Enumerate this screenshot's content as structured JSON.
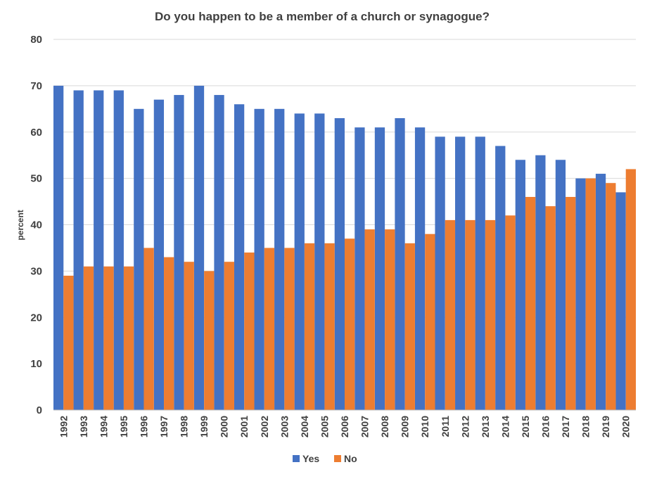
{
  "chart_data": {
    "type": "bar",
    "title": "Do you happen to be a member of a church or synagogue?",
    "ylabel": "percent",
    "xlabel": "",
    "ylim": [
      0,
      80
    ],
    "yticks": [
      0,
      10,
      20,
      30,
      40,
      50,
      60,
      70,
      80
    ],
    "grid": true,
    "legend_position": "bottom",
    "categories": [
      "1992",
      "1993",
      "1994",
      "1995",
      "1996",
      "1997",
      "1998",
      "1999",
      "2000",
      "2001",
      "2002",
      "2003",
      "2004",
      "2005",
      "2006",
      "2007",
      "2008",
      "2009",
      "2010",
      "2011",
      "2012",
      "2013",
      "2014",
      "2015",
      "2016",
      "2017",
      "2018",
      "2019",
      "2020"
    ],
    "series": [
      {
        "name": "Yes",
        "color": "#4472c4",
        "values": [
          70,
          69,
          69,
          69,
          65,
          67,
          68,
          70,
          68,
          66,
          65,
          65,
          64,
          64,
          63,
          61,
          61,
          63,
          61,
          59,
          59,
          59,
          57,
          54,
          55,
          54,
          50,
          51,
          47
        ]
      },
      {
        "name": "No",
        "color": "#ed7d31",
        "values": [
          29,
          31,
          31,
          31,
          35,
          33,
          32,
          30,
          32,
          34,
          35,
          35,
          36,
          36,
          37,
          39,
          39,
          36,
          38,
          41,
          41,
          41,
          42,
          46,
          44,
          46,
          50,
          49,
          52
        ]
      }
    ]
  }
}
